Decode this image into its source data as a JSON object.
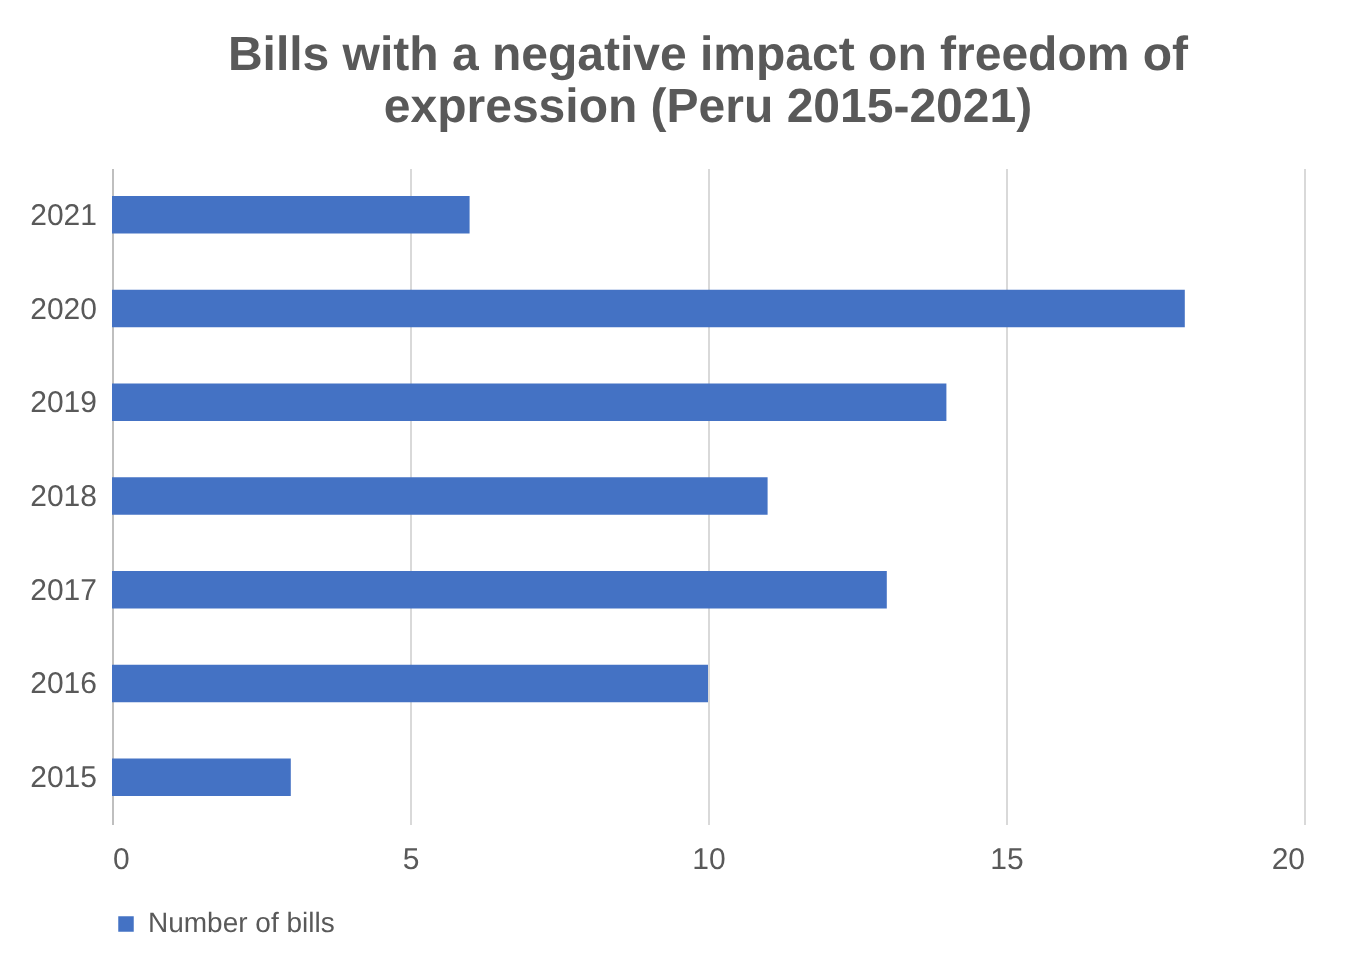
{
  "chart_data": {
    "type": "bar",
    "orientation": "horizontal",
    "title": "Bills with a negative impact on freedom of expression (Peru 2015-2021)",
    "categories": [
      "2021",
      "2020",
      "2019",
      "2018",
      "2017",
      "2016",
      "2015"
    ],
    "series": [
      {
        "name": "Number of bills",
        "color": "#4472c4",
        "values": [
          6,
          18,
          14,
          11,
          13,
          10,
          3
        ]
      }
    ],
    "xlim": [
      0,
      20
    ],
    "xticks": [
      0,
      5,
      10,
      15,
      20
    ],
    "grid": "x",
    "legend": "bottom"
  }
}
